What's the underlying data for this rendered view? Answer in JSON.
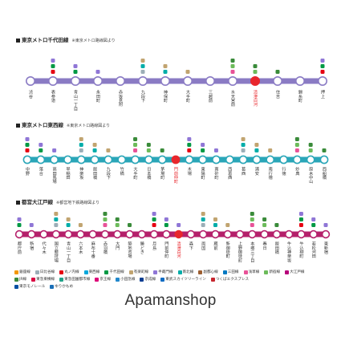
{
  "lines": [
    {
      "title": "東京メトロ千代田線",
      "note": "※東京メトロ路線図より",
      "color": "#8a7bc4",
      "stations": [
        "渋谷",
        "表参道",
        "青山一丁目",
        "永田町",
        "赤坂見附",
        "九段下",
        "神保町",
        "大手町",
        "三越前",
        "水天宮前",
        "清澄白河",
        "住吉",
        "錦糸町",
        "押上"
      ],
      "highlight": "清澄白河"
    },
    {
      "title": "東京メトロ東西線",
      "note": "※東京メトロ路線図より",
      "color": "#2aa6b8",
      "stations": [
        "中野",
        "落合",
        "高田馬場",
        "早稲田",
        "神楽坂",
        "飯田橋",
        "九段下",
        "竹橋",
        "大手町",
        "日本橋",
        "茅場町",
        "門前仲町",
        "木場",
        "東陽町",
        "南砂町",
        "西葛西",
        "葛西",
        "浦安",
        "南行徳",
        "行徳",
        "妙典",
        "原木中山",
        "西船橋"
      ],
      "highlight": "門前仲町"
    },
    {
      "title": "都営大江戸線",
      "note": "※都営地下鉄路線図より",
      "color": "#b5206b",
      "stations": [
        "都庁前",
        "新宿",
        "代々木",
        "国立競技場",
        "青山一丁目",
        "六本木",
        "麻布十番",
        "赤羽橋",
        "大門",
        "築地市場",
        "勝どき",
        "月島",
        "門前仲町",
        "清澄白河",
        "森下",
        "両国",
        "蔵前",
        "新御徒町",
        "上野御徒町",
        "本郷三丁目",
        "春日",
        "飯田橋",
        "牛込神楽坂",
        "牛込柳町",
        "若松河田",
        "東新宿"
      ],
      "highlight": "清澄白河"
    }
  ],
  "legend": [
    {
      "label": "銀座線",
      "color": "#f39700"
    },
    {
      "label": "日比谷線",
      "color": "#9caeb7"
    },
    {
      "label": "丸ノ内線",
      "color": "#e60012"
    },
    {
      "label": "東西線",
      "color": "#00a7db"
    },
    {
      "label": "千代田線",
      "color": "#009944"
    },
    {
      "label": "有楽町線",
      "color": "#c1a470"
    },
    {
      "label": "半蔵門線",
      "color": "#8f76d6"
    },
    {
      "label": "南北線",
      "color": "#00ada9"
    },
    {
      "label": "副都心線",
      "color": "#9c5e31"
    },
    {
      "label": "三田線",
      "color": "#0079c2"
    },
    {
      "label": "浅草線",
      "color": "#e85298"
    },
    {
      "label": "新宿線",
      "color": "#6cbb5a"
    },
    {
      "label": "大江戸線",
      "color": "#b6007a"
    },
    {
      "label": "JR線",
      "color": "#3a8b3a"
    },
    {
      "label": "東急東横線",
      "color": "#da0442"
    },
    {
      "label": "東急田園都市線",
      "color": "#20a288"
    },
    {
      "label": "京王線",
      "color": "#dd0077"
    },
    {
      "label": "小田急線",
      "color": "#2288cc"
    },
    {
      "label": "京成線",
      "color": "#0a3d91"
    },
    {
      "label": "東武スカイツリーライン",
      "color": "#0f6cc3"
    },
    {
      "label": "つくばエクスプレス",
      "color": "#c6262e"
    },
    {
      "label": "東京モノレール",
      "color": "#004ea2"
    },
    {
      "label": "ゆりかもめ",
      "color": "#1a6fb7"
    }
  ],
  "brand": "Apamanshop"
}
